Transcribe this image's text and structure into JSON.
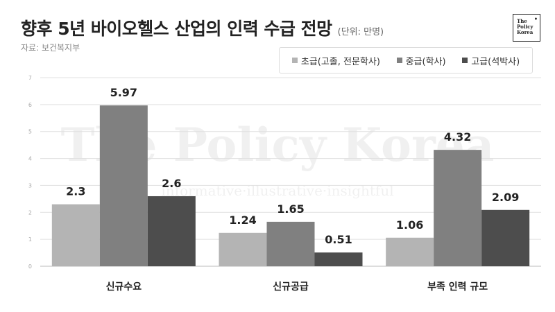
{
  "title": "향후 5년 바이오헬스 산업의 인력 수급 전망",
  "unit": "(단위: 만명)",
  "source": "자료: 보건복지부",
  "logo": {
    "line1": "The",
    "line2": "Policy",
    "line3": "Korea"
  },
  "watermark": {
    "main": "The Policy Korea",
    "tagline": "informative·illustrative·insightful"
  },
  "colors": {
    "light": "#b4b4b4",
    "mid": "#808080",
    "dark": "#4d4d4d",
    "grid": "#e0e0e0"
  },
  "chart_data": {
    "type": "bar",
    "categories": [
      "신규수요",
      "신규공급",
      "부족 인력 규모"
    ],
    "series": [
      {
        "name": "초급(고졸, 전문학사)",
        "values": [
          2.3,
          1.24,
          1.06
        ]
      },
      {
        "name": "중급(학사)",
        "values": [
          5.97,
          1.65,
          4.32
        ]
      },
      {
        "name": "고급(석박사)",
        "values": [
          2.6,
          0.51,
          2.09
        ]
      }
    ],
    "labels": [
      [
        "2.3",
        "1.24",
        "1.06"
      ],
      [
        "5.97",
        "1.65",
        "4.32"
      ],
      [
        "2.6",
        "0.51",
        "2.09"
      ]
    ],
    "yticks": [
      "0",
      "1",
      "2",
      "3",
      "4",
      "5",
      "6",
      "7"
    ],
    "ylim": [
      0,
      7
    ],
    "grid": true,
    "legend": "top-right"
  }
}
